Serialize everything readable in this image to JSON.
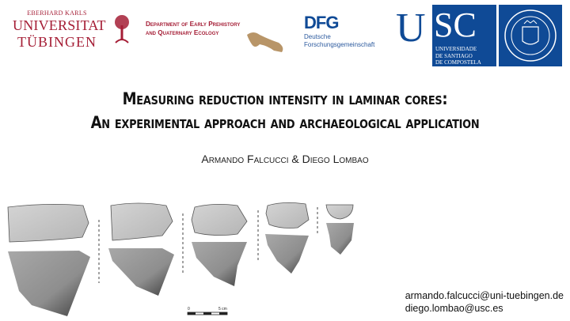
{
  "logos": {
    "tubingen": {
      "line1": "EBERHARD KARLS",
      "line2": "UNIVERSITAT",
      "line3": "TÜBINGEN",
      "color": "#a51e36"
    },
    "department": {
      "line1": "Department of Early Prehistory",
      "line2": "and Quaternary Ecology"
    },
    "dfg": {
      "logo": "DFG",
      "line1": "Deutsche",
      "line2": "Forschungsgemeinschaft",
      "color": "#0f4a96"
    },
    "usc": {
      "u": "U",
      "sc": "SC",
      "line1": "UNIVERSIDADE",
      "line2": "DE SANTIAGO",
      "line3": "DE COMPOSTELA",
      "color": "#0f4a96"
    }
  },
  "title": {
    "line1": "Measuring reduction intensity in laminar cores:",
    "line2": "An experimental approach and archaeological application"
  },
  "authors": "Armando Falcucci & Diego Lombao",
  "figure": {
    "scale_start": "0",
    "scale_end": "5 cm"
  },
  "emails": [
    "armando.falcucci@uni-tuebingen.de",
    "diego.lombao@usc.es"
  ]
}
